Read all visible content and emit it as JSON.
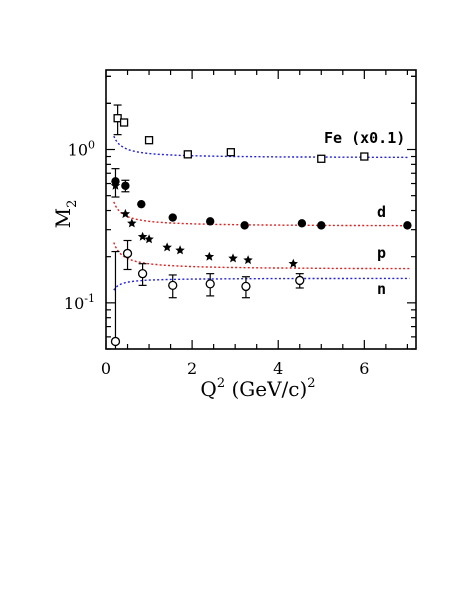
{
  "chart_data": {
    "type": "scatter",
    "xlabel": {
      "base": "Q",
      "sup": "2",
      "rest": " (GeV/c)",
      "sup2": "2"
    },
    "ylabel": {
      "base": "M",
      "sub": "2"
    },
    "xlim": [
      0,
      7.2
    ],
    "ylim": [
      0.05,
      3.3
    ],
    "y_scale": "log",
    "x_ticks": [
      "0",
      "2",
      "4",
      "6"
    ],
    "x_tick_values": [
      0,
      2,
      4,
      6
    ],
    "y_ticks": [
      "10",
      "10"
    ],
    "y_tick_sups": [
      "0",
      "-1"
    ],
    "y_tick_values": [
      1,
      0.1
    ],
    "grid": false,
    "legend": "none",
    "series": [
      {
        "name": "Fe (x0.1)",
        "marker": "open-square",
        "fit_color": "#2222dd",
        "points": [
          {
            "x": 0.27,
            "y": 1.6,
            "err": 0.35
          },
          {
            "x": 0.42,
            "y": 1.5,
            "err": 0
          },
          {
            "x": 1.0,
            "y": 1.15,
            "err": 0
          },
          {
            "x": 1.9,
            "y": 0.93,
            "err": 0
          },
          {
            "x": 2.9,
            "y": 0.96,
            "err": 0
          },
          {
            "x": 5.0,
            "y": 0.87,
            "err": 0
          },
          {
            "x": 6.0,
            "y": 0.9,
            "err": 0
          }
        ],
        "fit": {
          "a": 0.88,
          "b": 0.07
        }
      },
      {
        "name": "d",
        "marker": "filled-circle",
        "fit_color": "#dd2222",
        "points": [
          {
            "x": 0.22,
            "y": 0.62,
            "err": 0.13
          },
          {
            "x": 0.45,
            "y": 0.58,
            "err": 0.05
          },
          {
            "x": 0.82,
            "y": 0.44,
            "err": 0
          },
          {
            "x": 1.55,
            "y": 0.36,
            "err": 0
          },
          {
            "x": 2.42,
            "y": 0.34,
            "err": 0
          },
          {
            "x": 3.22,
            "y": 0.32,
            "err": 0
          },
          {
            "x": 4.55,
            "y": 0.33,
            "err": 0
          },
          {
            "x": 5.0,
            "y": 0.32,
            "err": 0
          },
          {
            "x": 7.0,
            "y": 0.32,
            "err": 0
          }
        ],
        "fit": {
          "a": 0.315,
          "b": 0.08
        }
      },
      {
        "name": "p",
        "marker": "filled-star",
        "fit_color": "#dd2222",
        "points": [
          {
            "x": 0.22,
            "y": 0.58,
            "err": 0
          },
          {
            "x": 0.45,
            "y": 0.38,
            "err": 0
          },
          {
            "x": 0.6,
            "y": 0.33,
            "err": 0
          },
          {
            "x": 0.85,
            "y": 0.27,
            "err": 0
          },
          {
            "x": 1.0,
            "y": 0.26,
            "err": 0
          },
          {
            "x": 1.42,
            "y": 0.23,
            "err": 0
          },
          {
            "x": 1.72,
            "y": 0.22,
            "err": 0
          },
          {
            "x": 2.4,
            "y": 0.2,
            "err": 0
          },
          {
            "x": 2.95,
            "y": 0.195,
            "err": 0
          },
          {
            "x": 3.3,
            "y": 0.19,
            "err": 0
          },
          {
            "x": 4.35,
            "y": 0.18,
            "err": 0
          }
        ],
        "fit": {
          "a": 0.165,
          "b": 0.09
        }
      },
      {
        "name": "n",
        "marker": "open-circle",
        "fit_color": "#2222dd",
        "points": [
          {
            "x": 0.22,
            "y": 0.056,
            "err": 0.16
          },
          {
            "x": 0.5,
            "y": 0.21,
            "err": 0.045
          },
          {
            "x": 0.85,
            "y": 0.155,
            "err": 0.025
          },
          {
            "x": 1.55,
            "y": 0.13,
            "err": 0.022
          },
          {
            "x": 2.42,
            "y": 0.133,
            "err": 0.022
          },
          {
            "x": 3.25,
            "y": 0.128,
            "err": 0.02
          },
          {
            "x": 4.5,
            "y": 0.14,
            "err": 0.015
          }
        ],
        "fit": {
          "a": 0.145,
          "b": -0.03
        }
      }
    ]
  }
}
